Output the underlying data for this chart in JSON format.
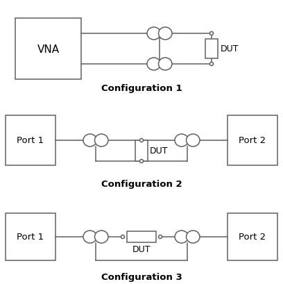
{
  "bg_color": "#ffffff",
  "line_color": "#606060",
  "box_edge": "#606060",
  "config_labels": [
    "Configuration 1",
    "Configuration 2",
    "Configuration 3"
  ],
  "config_label_fontsize": 9.5,
  "label_fontstyle": "bold",
  "lw": 1.1
}
